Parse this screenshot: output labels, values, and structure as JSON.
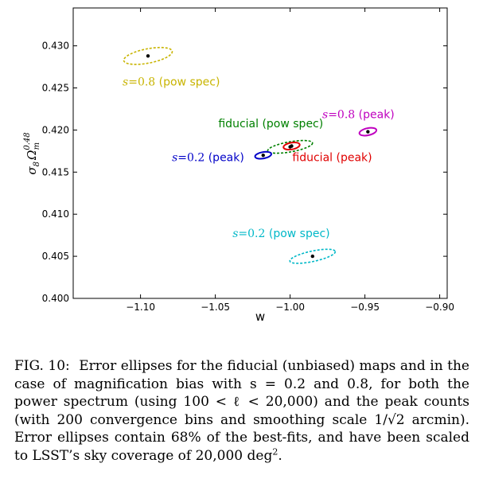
{
  "chart_data": {
    "type": "scatter",
    "xlabel": "w",
    "ylabel": {
      "main": "σ",
      "sub8": "8",
      "omega": "Ω",
      "subm": "m",
      "sup": "0.48"
    },
    "xlim": [
      -1.145,
      -0.895
    ],
    "ylim": [
      0.4,
      0.4345
    ],
    "xticks": [
      -1.1,
      -1.05,
      -1.0,
      -0.95,
      -0.9
    ],
    "xtick_labels": [
      "−1.10",
      "−1.05",
      "−1.00",
      "−0.95",
      "−0.90"
    ],
    "yticks": [
      0.4,
      0.405,
      0.41,
      0.415,
      0.42,
      0.425,
      0.43
    ],
    "ytick_labels": [
      "0.400",
      "0.405",
      "0.410",
      "0.415",
      "0.420",
      "0.425",
      "0.430"
    ],
    "grid": false,
    "series": [
      {
        "name": "s=0.8 (pow spec)",
        "label_pre": "s",
        "label_num": "=0.8",
        "label_post": " (pow spec)",
        "color": "#c8b400",
        "center": [
          -1.095,
          0.4288
        ],
        "rx_w": 0.0165,
        "ry_w": 0.00085,
        "angle": 11,
        "label_at": [
          -1.112,
          0.4253
        ],
        "label_anchor": "start"
      },
      {
        "name": "fiducial (pow spec)",
        "label_pre": "",
        "label_num": "",
        "label_post": "fiducial (pow spec)",
        "color": "#008000",
        "center": [
          -1.0,
          0.418
        ],
        "rx_w": 0.0152,
        "ry_w": 0.0006,
        "angle": 10,
        "label_at": [
          -1.048,
          0.4203
        ],
        "label_anchor": "start"
      },
      {
        "name": "fiducial (peak)",
        "label_pre": "",
        "label_num": "",
        "label_post": "fiducial (peak)",
        "color": "#e00000",
        "center": [
          -0.999,
          0.4181
        ],
        "rx_w": 0.0055,
        "ry_w": 0.0004,
        "angle": 10,
        "label_at": [
          -0.9985,
          0.4163
        ],
        "label_anchor": "start"
      },
      {
        "name": "s=0.2 (peak)",
        "label_pre": "s",
        "label_num": "=0.2",
        "label_post": " (peak)",
        "color": "#0000c8",
        "center": [
          -1.018,
          0.417
        ],
        "rx_w": 0.0055,
        "ry_w": 0.00038,
        "angle": 10,
        "label_at": [
          -1.079,
          0.4163
        ],
        "label_anchor": "start"
      },
      {
        "name": "s=0.8 (peak)",
        "label_pre": "s",
        "label_num": "=0.8",
        "label_post": " (peak)",
        "color": "#bf00bf",
        "center": [
          -0.948,
          0.4198
        ],
        "rx_w": 0.0058,
        "ry_w": 0.00042,
        "angle": 12,
        "label_at": [
          -0.9785,
          0.4214
        ],
        "label_anchor": "start"
      },
      {
        "name": "s=0.2 (pow spec)",
        "label_pre": "s",
        "label_num": "=0.2",
        "label_post": " (pow spec)",
        "color": "#00b8c8",
        "center": [
          -0.985,
          0.405
        ],
        "rx_w": 0.0155,
        "ry_w": 0.00062,
        "angle": 12,
        "label_at": [
          -1.0385,
          0.4073
        ],
        "label_anchor": "start"
      }
    ]
  },
  "caption": {
    "label": "FIG. 10:",
    "text": "Error ellipses for the fiducial (unbiased) maps and in the case of magnification bias with s = 0.2 and 0.8, for both the power spectrum (using 100 < ℓ < 20,000) and the peak counts (with 200 convergence bins and smoothing scale 1/√2 arcmin). Error ellipses contain 68% of the best-fits, and have been scaled to LSST’s sky coverage of 20,000 deg",
    "sup": "2",
    "end": "."
  }
}
